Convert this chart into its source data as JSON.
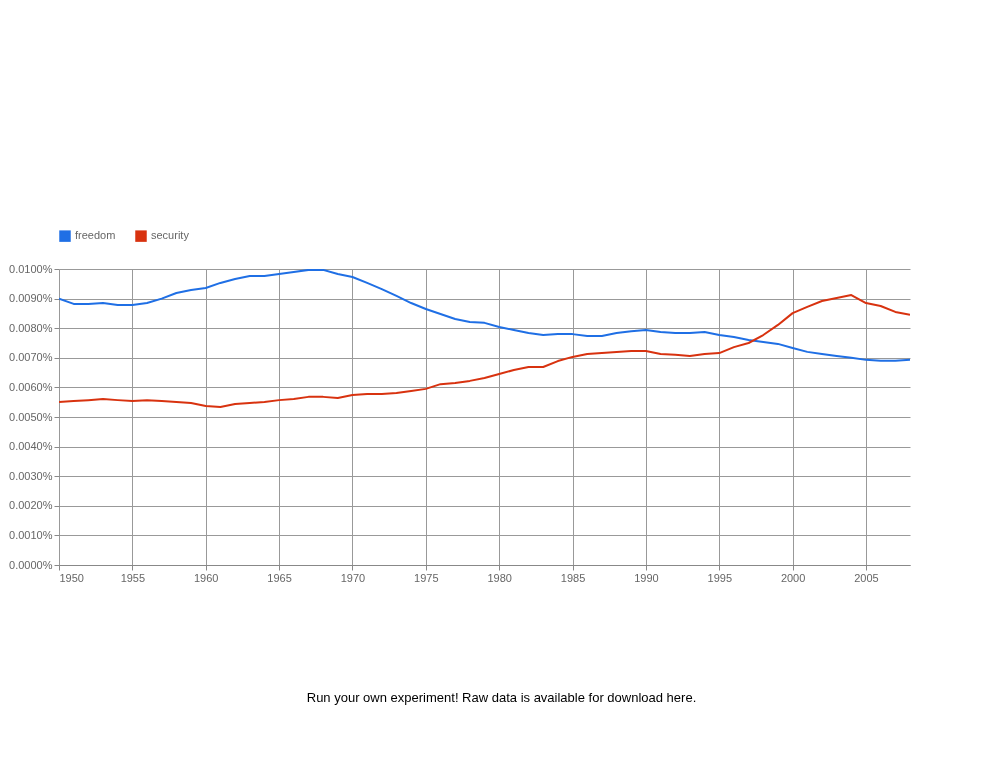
{
  "chart_data": {
    "type": "line",
    "x": [
      1950,
      1951,
      1952,
      1953,
      1954,
      1955,
      1956,
      1957,
      1958,
      1959,
      1960,
      1961,
      1962,
      1963,
      1964,
      1965,
      1966,
      1967,
      1968,
      1969,
      1970,
      1971,
      1972,
      1973,
      1974,
      1975,
      1976,
      1977,
      1978,
      1979,
      1980,
      1981,
      1982,
      1983,
      1984,
      1985,
      1986,
      1987,
      1988,
      1989,
      1990,
      1991,
      1992,
      1993,
      1994,
      1995,
      1996,
      1997,
      1998,
      1999,
      2000,
      2001,
      2002,
      2003,
      2004,
      2005,
      2006,
      2007,
      2008
    ],
    "series": [
      {
        "name": "freedom",
        "color": "#1f6fe5",
        "values": [
          0.009,
          0.00882,
          0.00882,
          0.00885,
          0.00878,
          0.00878,
          0.00885,
          0.009,
          0.00919,
          0.00929,
          0.00936,
          0.00953,
          0.00966,
          0.00976,
          0.00976,
          0.00983,
          0.0099,
          0.00997,
          0.00997,
          0.00983,
          0.00973,
          0.00953,
          0.00932,
          0.00909,
          0.00885,
          0.00865,
          0.00848,
          0.00831,
          0.00821,
          0.00818,
          0.00804,
          0.00794,
          0.00784,
          0.00777,
          0.0078,
          0.0078,
          0.00774,
          0.00774,
          0.00784,
          0.0079,
          0.00794,
          0.00787,
          0.00784,
          0.00784,
          0.00787,
          0.00777,
          0.0077,
          0.0076,
          0.00753,
          0.00747,
          0.00733,
          0.0072,
          0.00713,
          0.00706,
          0.007,
          0.00693,
          0.0069,
          0.0069,
          0.00693
        ]
      },
      {
        "name": "security",
        "color": "#d8320f",
        "values": [
          0.00551,
          0.00554,
          0.00557,
          0.00561,
          0.00557,
          0.00554,
          0.00557,
          0.00554,
          0.00551,
          0.00547,
          0.00537,
          0.00534,
          0.00544,
          0.00547,
          0.00551,
          0.00557,
          0.00561,
          0.00568,
          0.00568,
          0.00564,
          0.00574,
          0.00578,
          0.00578,
          0.00581,
          0.00588,
          0.00595,
          0.00611,
          0.00615,
          0.00622,
          0.00632,
          0.00645,
          0.00659,
          0.00669,
          0.00669,
          0.00689,
          0.00703,
          0.00713,
          0.00716,
          0.0072,
          0.00723,
          0.00723,
          0.00713,
          0.0071,
          0.00706,
          0.00713,
          0.00716,
          0.00736,
          0.0075,
          0.00777,
          0.00811,
          0.00851,
          0.00872,
          0.00892,
          0.00902,
          0.00912,
          0.00885,
          0.00875,
          0.00855,
          0.00845
        ]
      }
    ],
    "xlim": [
      1950,
      2008
    ],
    "xticks": [
      1950,
      1955,
      1960,
      1965,
      1970,
      1975,
      1980,
      1985,
      1990,
      1995,
      2000,
      2005
    ],
    "ylim": [
      0,
      0.01
    ],
    "yticks": [
      {
        "value": 0,
        "label": "0.0000%"
      },
      {
        "value": 0.001,
        "label": "0.0010%"
      },
      {
        "value": 0.002,
        "label": "0.0020%"
      },
      {
        "value": 0.003,
        "label": "0.0030%"
      },
      {
        "value": 0.004,
        "label": "0.0040%"
      },
      {
        "value": 0.005,
        "label": "0.0050%"
      },
      {
        "value": 0.006,
        "label": "0.0060%"
      },
      {
        "value": 0.007,
        "label": "0.0070%"
      },
      {
        "value": 0.008,
        "label": "0.0080%"
      },
      {
        "value": 0.009,
        "label": "0.0090%"
      },
      {
        "value": 0.01,
        "label": "0.0100%"
      }
    ],
    "grid": true,
    "legend": "top",
    "marker": "none",
    "line_style": "solid",
    "annotations": [
      "Run your own experiment! Raw data is available for download here."
    ]
  }
}
